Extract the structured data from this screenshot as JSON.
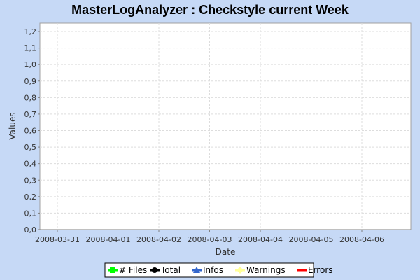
{
  "chart_data": {
    "type": "line",
    "title": "MasterLogAnalyzer : Checkstyle current Week",
    "xlabel": "Date",
    "ylabel": "Values",
    "x_ticks": [
      "2008-03-31",
      "2008-04-01",
      "2008-04-02",
      "2008-04-03",
      "2008-04-04",
      "2008-04-05",
      "2008-04-06"
    ],
    "y_ticks": [
      "0,0",
      "0,1",
      "0,2",
      "0,3",
      "0,4",
      "0,5",
      "0,6",
      "0,7",
      "0,8",
      "0,9",
      "1,0",
      "1,1",
      "1,2"
    ],
    "ylim": [
      0,
      1.2
    ],
    "grid": true,
    "legend_position": "bottom",
    "series": [
      {
        "name": "# Files",
        "color": "#00ff00",
        "marker": "square",
        "values": []
      },
      {
        "name": "Total",
        "color": "#000000",
        "marker": "circle",
        "values": []
      },
      {
        "name": "Infos",
        "color": "#3366cc",
        "marker": "triangle",
        "values": []
      },
      {
        "name": "Warnings",
        "color": "#ffff99",
        "marker": "diamond",
        "values": []
      },
      {
        "name": "Errors",
        "color": "#ff0000",
        "marker": "none",
        "values": []
      }
    ]
  }
}
